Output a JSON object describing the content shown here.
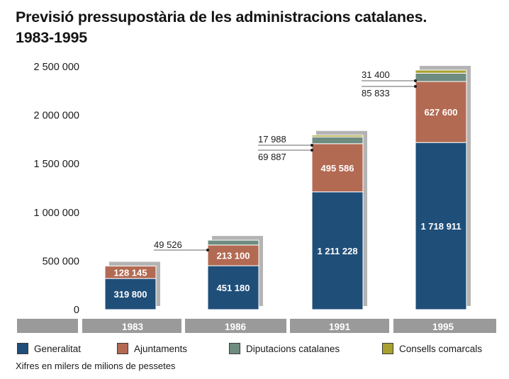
{
  "title_line1": "Previsió pressupostària de les administracions catalanes.",
  "title_line2": "1983-1995",
  "note": "Xifres en milers de milions de pessetes",
  "colors": {
    "generalitat": "#1f4e79",
    "ajuntaments": "#b36a52",
    "diputacions": "#6e8c80",
    "consells": "#a8a030",
    "shadow": "#b4b4b4",
    "axis_band": "#9a9a9a"
  },
  "chart_data": {
    "type": "bar",
    "stacked": true,
    "categories": [
      "1983",
      "1986",
      "1991",
      "1995"
    ],
    "series": [
      {
        "name": "Generalitat",
        "color_key": "generalitat",
        "values": [
          319800,
          451180,
          1211228,
          1718911
        ],
        "labels": [
          "319 800",
          "451 180",
          "1 211 228",
          "1 718 911"
        ]
      },
      {
        "name": "Ajuntaments",
        "color_key": "ajuntaments",
        "values": [
          128145,
          213100,
          495586,
          627600
        ],
        "labels": [
          "128 145",
          "213 100",
          "495 586",
          "627 600"
        ]
      },
      {
        "name": "Diputacions catalanes",
        "color_key": "diputacions",
        "values": [
          0,
          49526,
          69887,
          85833
        ],
        "labels": [
          "",
          "49 526",
          "69 887",
          "85 833"
        ]
      },
      {
        "name": "Consells comarcals",
        "color_key": "consells",
        "values": [
          0,
          0,
          17988,
          31400
        ],
        "labels": [
          "",
          "",
          "17 988",
          "31 400"
        ]
      }
    ],
    "yticks": [
      0,
      500000,
      1000000,
      1500000,
      2000000,
      2500000
    ],
    "ytick_labels": [
      "0",
      "500 000",
      "1 000 000",
      "1 500 000",
      "2 000 000",
      "2 500 000"
    ],
    "ylim": [
      0,
      2500000
    ],
    "grid": false,
    "legend_position": "bottom"
  }
}
